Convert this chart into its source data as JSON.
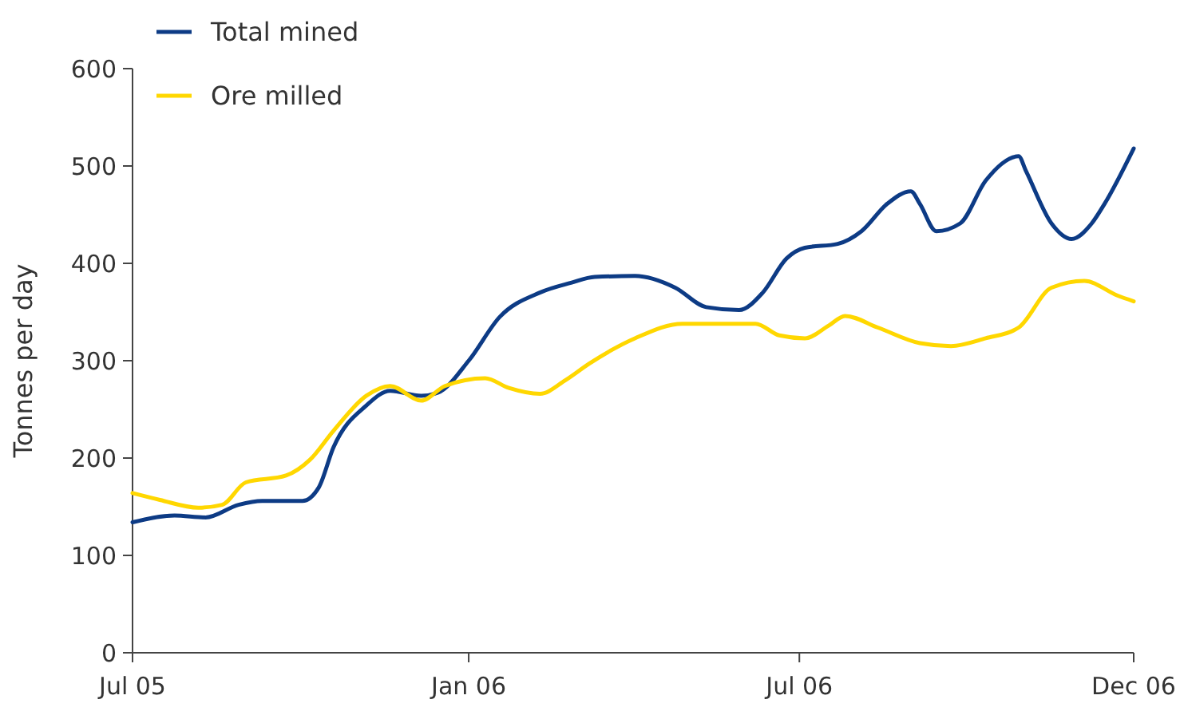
{
  "chart_data": {
    "type": "line",
    "ylabel": "Tonnes per day",
    "xlim": [
      "2005-07-01",
      "2006-12-31"
    ],
    "xticks": [
      {
        "value": "2005-07-01",
        "label": "Jul 05"
      },
      {
        "value": "2006-01-01",
        "label": "Jan 06"
      },
      {
        "value": "2006-07-01",
        "label": "Jul 06"
      },
      {
        "value": "2006-12-31",
        "label": "Dec 06"
      }
    ],
    "ylim": [
      0,
      600
    ],
    "yticks": [
      0,
      100,
      200,
      300,
      400,
      500,
      600
    ],
    "grid": false,
    "legend": "top left",
    "series": [
      {
        "name": "Total mined",
        "color": "#0d3b85",
        "x": [
          "2005-07-01",
          "2005-07-24",
          "2005-08-10",
          "2005-08-28",
          "2005-09-10",
          "2005-10-02",
          "2005-10-11",
          "2005-10-19",
          "2005-11-06",
          "2005-11-19",
          "2005-12-06",
          "2005-12-15",
          "2006-01-01",
          "2006-01-18",
          "2006-02-09",
          "2006-02-26",
          "2006-03-11",
          "2006-04-02",
          "2006-04-24",
          "2006-05-11",
          "2006-05-29",
          "2006-06-11",
          "2006-06-24",
          "2006-07-04",
          "2006-07-22",
          "2006-08-04",
          "2006-08-18",
          "2006-08-31",
          "2006-09-05",
          "2006-09-14",
          "2006-09-27",
          "2006-10-11",
          "2006-10-29",
          "2006-11-02",
          "2006-11-16",
          "2006-11-27",
          "2006-12-08",
          "2006-12-15",
          "2006-12-31"
        ],
        "values": [
          134,
          141,
          139,
          152,
          156,
          156,
          170,
          211,
          254,
          269,
          264,
          267,
          300,
          345,
          370,
          380,
          386,
          387,
          375,
          355,
          352,
          370,
          405,
          416,
          420,
          433,
          461,
          474,
          461,
          433,
          441,
          485,
          510,
          495,
          441,
          425,
          441,
          461,
          518
        ]
      },
      {
        "name": "Ore milled",
        "color": "#ffd700",
        "x": [
          "2005-07-01",
          "2005-07-16",
          "2005-08-06",
          "2005-08-19",
          "2005-09-01",
          "2005-09-23",
          "2005-10-06",
          "2005-10-19",
          "2005-11-06",
          "2005-11-19",
          "2005-12-06",
          "2005-12-19",
          "2006-01-10",
          "2006-01-23",
          "2006-02-09",
          "2006-02-23",
          "2006-03-08",
          "2006-04-02",
          "2006-04-28",
          "2006-05-20",
          "2006-06-07",
          "2006-06-20",
          "2006-07-04",
          "2006-07-17",
          "2006-07-26",
          "2006-08-13",
          "2006-09-05",
          "2006-09-22",
          "2006-10-11",
          "2006-10-29",
          "2006-11-16",
          "2006-12-04",
          "2006-12-22",
          "2006-12-31"
        ],
        "values": [
          164,
          157,
          149,
          152,
          175,
          182,
          198,
          228,
          264,
          274,
          259,
          274,
          282,
          272,
          266,
          280,
          297,
          323,
          338,
          338,
          338,
          326,
          323,
          336,
          346,
          334,
          318,
          315,
          323,
          334,
          375,
          382,
          367,
          361
        ]
      }
    ]
  }
}
